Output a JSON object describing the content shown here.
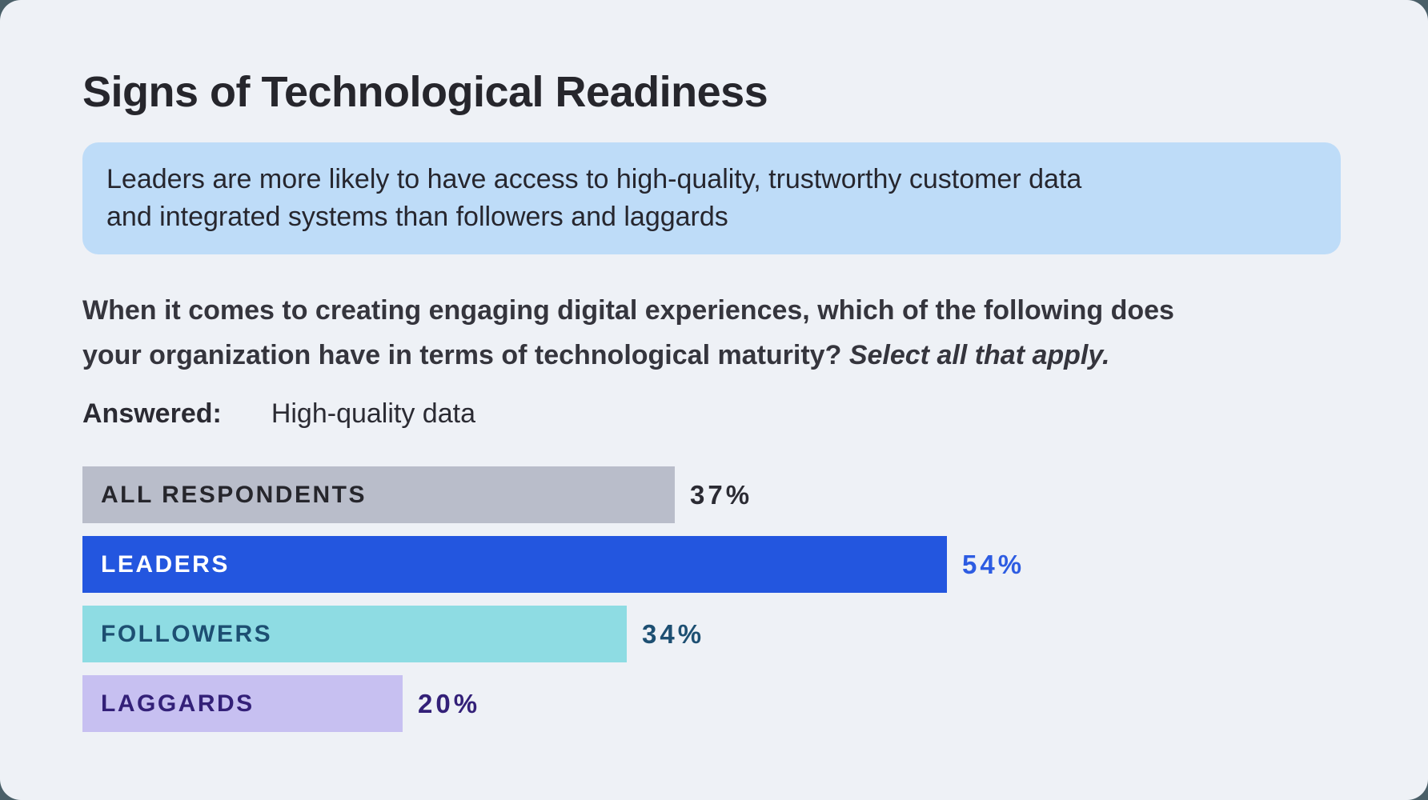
{
  "page": {
    "title": "Signs of Technological Readiness"
  },
  "colors": {
    "corner_bg": "#4a5f68",
    "panel_bg": "#eef1f6",
    "callout_bg": "#bedcf8",
    "title_text": "#26262c"
  },
  "callout": {
    "bg_color": "#bedcf8",
    "text": "Leaders are more likely to have access to high-quality, trustworthy customer data and integrated systems than followers and laggards",
    "lines": [
      "Leaders are more likely to have access to high-quality, trustworthy customer data",
      "and integrated systems than followers and laggards"
    ]
  },
  "question": {
    "line1": "When it comes to creating engaging digital experiences, which of the following does",
    "line2_normal": "your organization have in terms of technological maturity?",
    "line2_italic": "Select all that apply."
  },
  "answered": {
    "label": "Answered:",
    "value": "High-quality data"
  },
  "chart_data": {
    "type": "bar",
    "orientation": "horizontal",
    "unit": "%",
    "xlim": [
      0,
      54
    ],
    "axis_shown": false,
    "grid": false,
    "value_labels_shown": true,
    "categories": [
      "ALL RESPONDENTS",
      "LEADERS",
      "FOLLOWERS",
      "LAGGARDS"
    ],
    "values": [
      37,
      54,
      34,
      20
    ],
    "rows": [
      {
        "label": "ALL RESPONDENTS",
        "value": 37,
        "value_text": "37%",
        "bar_color": "#b9bdca",
        "label_color": "#26262c",
        "value_color": "#2b2b33"
      },
      {
        "label": "LEADERS",
        "value": 54,
        "value_text": "54%",
        "bar_color": "#2356df",
        "label_color": "#ffffff",
        "value_color": "#2d5ce2"
      },
      {
        "label": "FOLLOWERS",
        "value": 34,
        "value_text": "34%",
        "bar_color": "#8edce3",
        "label_color": "#1d4f72",
        "value_color": "#1d4f72"
      },
      {
        "label": "LAGGARDS",
        "value": 20,
        "value_text": "20%",
        "bar_color": "#c7c0f1",
        "label_color": "#332078",
        "value_color": "#332078"
      }
    ]
  }
}
